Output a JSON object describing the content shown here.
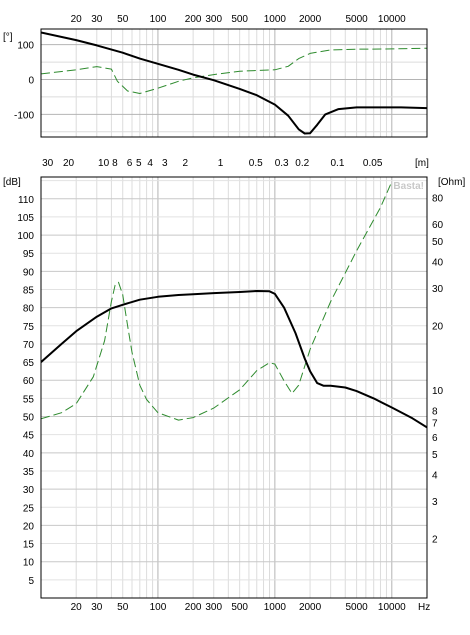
{
  "chart_data": [
    {
      "type": "line",
      "panel": "phase",
      "xscale": "log",
      "xlim": [
        10,
        20000
      ],
      "xticks": [
        {
          "v": 20,
          "label": "20"
        },
        {
          "v": 30,
          "label": "30"
        },
        {
          "v": 50,
          "label": "50"
        },
        {
          "v": 100,
          "label": "100"
        },
        {
          "v": 200,
          "label": "200"
        },
        {
          "v": 300,
          "label": "300"
        },
        {
          "v": 500,
          "label": "500"
        },
        {
          "v": 1000,
          "label": "1000"
        },
        {
          "v": 2000,
          "label": "2000"
        },
        {
          "v": 5000,
          "label": "5000"
        },
        {
          "v": 10000,
          "label": "10000"
        }
      ],
      "ylabel": "[°]",
      "ylim": [
        -165,
        145
      ],
      "yticks": [
        {
          "v": 100,
          "label": "100"
        },
        {
          "v": 0,
          "label": "0"
        },
        {
          "v": -100,
          "label": "-100"
        }
      ],
      "grid": true,
      "series": [
        {
          "style": "solid",
          "color": "#000000",
          "x": [
            10,
            20,
            30,
            50,
            70,
            100,
            150,
            200,
            300,
            500,
            700,
            1000,
            1300,
            1600,
            1800,
            2000,
            2300,
            2700,
            3500,
            5000,
            8000,
            12000,
            20000
          ],
          "y": [
            135,
            113,
            98,
            77,
            60,
            45,
            28,
            14,
            -2,
            -27,
            -45,
            -72,
            -104,
            -143,
            -155,
            -154,
            -130,
            -100,
            -85,
            -80,
            -80,
            -80,
            -82
          ]
        },
        {
          "style": "dashed",
          "color": "#2e8b2e",
          "x": [
            10,
            20,
            30,
            40,
            45,
            55,
            70,
            100,
            150,
            200,
            300,
            500,
            700,
            1000,
            1300,
            1600,
            2000,
            3000,
            5000,
            10000,
            20000
          ],
          "y": [
            16,
            28,
            37,
            30,
            -5,
            -33,
            -40,
            -25,
            -5,
            5,
            14,
            24,
            26,
            28,
            38,
            60,
            75,
            85,
            87,
            88,
            90
          ]
        }
      ]
    },
    {
      "type": "line",
      "panel": "spl",
      "xscale": "log",
      "xlim": [
        10,
        20000
      ],
      "xlabel": "Hz",
      "xticks": [
        {
          "v": 20,
          "label": "20"
        },
        {
          "v": 30,
          "label": "30"
        },
        {
          "v": 50,
          "label": "50"
        },
        {
          "v": 100,
          "label": "100"
        },
        {
          "v": 200,
          "label": "200"
        },
        {
          "v": 300,
          "label": "300"
        },
        {
          "v": 500,
          "label": "500"
        },
        {
          "v": 1000,
          "label": "1000"
        },
        {
          "v": 2000,
          "label": "2000"
        },
        {
          "v": 5000,
          "label": "5000"
        },
        {
          "v": 10000,
          "label": "10000"
        }
      ],
      "top_axis_label": "[m]",
      "top_ticks": [
        {
          "f": 11.4,
          "label": "30"
        },
        {
          "f": 17.2,
          "label": "20"
        },
        {
          "f": 34.3,
          "label": "10"
        },
        {
          "f": 42.9,
          "label": "8"
        },
        {
          "f": 57.2,
          "label": "6"
        },
        {
          "f": 68.6,
          "label": "5"
        },
        {
          "f": 85.8,
          "label": "4"
        },
        {
          "f": 114.3,
          "label": "3"
        },
        {
          "f": 171.5,
          "label": "2"
        },
        {
          "f": 343,
          "label": "1"
        },
        {
          "f": 686,
          "label": "0.5"
        },
        {
          "f": 1143,
          "label": "0.3"
        },
        {
          "f": 1715,
          "label": "0.2"
        },
        {
          "f": 3430,
          "label": "0.1"
        },
        {
          "f": 6860,
          "label": "0.05"
        }
      ],
      "ylabel": "[dB]",
      "ylim": [
        0,
        116
      ],
      "yticks": [
        {
          "v": 110,
          "label": "110"
        },
        {
          "v": 105,
          "label": "105"
        },
        {
          "v": 100,
          "label": "100"
        },
        {
          "v": 95,
          "label": "95"
        },
        {
          "v": 90,
          "label": "90"
        },
        {
          "v": 85,
          "label": "85"
        },
        {
          "v": 80,
          "label": "80"
        },
        {
          "v": 75,
          "label": "75"
        },
        {
          "v": 70,
          "label": "70"
        },
        {
          "v": 65,
          "label": "65"
        },
        {
          "v": 60,
          "label": "60"
        },
        {
          "v": 55,
          "label": "55"
        },
        {
          "v": 50,
          "label": "50"
        },
        {
          "v": 45,
          "label": "45"
        },
        {
          "v": 40,
          "label": "40"
        },
        {
          "v": 35,
          "label": "35"
        },
        {
          "v": 30,
          "label": "30"
        },
        {
          "v": 25,
          "label": "25"
        },
        {
          "v": 20,
          "label": "20"
        },
        {
          "v": 15,
          "label": "15"
        },
        {
          "v": 10,
          "label": "10"
        },
        {
          "v": 5,
          "label": "5"
        }
      ],
      "y2label": "[Ohm]",
      "y2scale": "log",
      "y2lim": [
        1.05,
        100
      ],
      "y2ticks": [
        {
          "v": 80,
          "label": "80"
        },
        {
          "v": 60,
          "label": "60"
        },
        {
          "v": 50,
          "label": "50"
        },
        {
          "v": 40,
          "label": "40"
        },
        {
          "v": 30,
          "label": "30"
        },
        {
          "v": 20,
          "label": "20"
        },
        {
          "v": 10,
          "label": "10"
        },
        {
          "v": 8,
          "label": "8"
        },
        {
          "v": 7,
          "label": "7"
        },
        {
          "v": 6,
          "label": "6"
        },
        {
          "v": 5,
          "label": "5"
        },
        {
          "v": 4,
          "label": "4"
        },
        {
          "v": 3,
          "label": "3"
        },
        {
          "v": 2,
          "label": "2"
        }
      ],
      "watermark": "Basta!",
      "grid": true,
      "series": [
        {
          "axis": "left",
          "style": "solid",
          "color": "#000000",
          "x": [
            10,
            15,
            20,
            30,
            40,
            50,
            70,
            100,
            150,
            200,
            300,
            500,
            700,
            900,
            1000,
            1200,
            1500,
            1800,
            2000,
            2300,
            2600,
            3000,
            4000,
            5000,
            7000,
            10000,
            15000,
            20000
          ],
          "y": [
            65,
            70,
            73.5,
            77.5,
            79.8,
            80.8,
            82.2,
            83,
            83.5,
            83.7,
            84,
            84.3,
            84.6,
            84.5,
            83.8,
            80,
            73,
            66,
            62.5,
            59.2,
            58.5,
            58.5,
            58,
            57,
            55,
            52.5,
            49.5,
            47
          ]
        },
        {
          "axis": "right",
          "style": "dashed",
          "color": "#2e8b2e",
          "x": [
            10,
            15,
            20,
            28,
            35,
            40,
            43,
            46,
            50,
            55,
            60,
            70,
            80,
            100,
            150,
            200,
            300,
            500,
            700,
            900,
            1000,
            1200,
            1400,
            1600,
            2000,
            3000,
            5000,
            8000,
            10000
          ],
          "y": [
            7.3,
            7.8,
            8.6,
            11.5,
            17,
            26,
            31,
            32,
            28,
            20,
            15,
            10.5,
            9,
            7.8,
            7.2,
            7.4,
            8.2,
            10,
            12.3,
            13.4,
            13.2,
            11,
            9.6,
            10.5,
            15.5,
            26,
            45,
            72,
            95
          ]
        }
      ]
    }
  ]
}
